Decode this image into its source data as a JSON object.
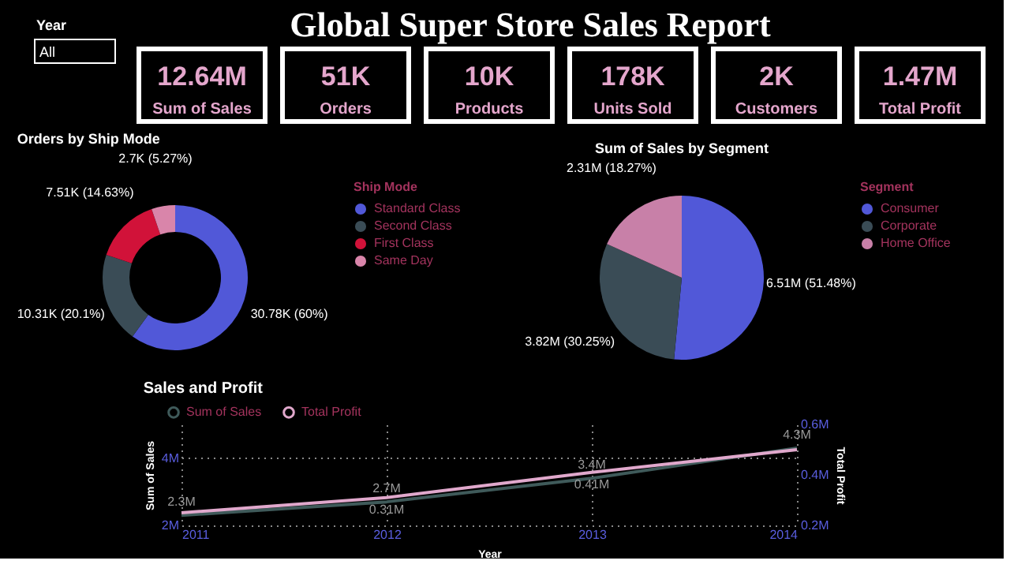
{
  "chart_data": [
    {
      "type": "other",
      "title": "Global Super Store Sales Report",
      "annotations": [
        "Year",
        "All",
        "12.64M",
        "Sum of Sales",
        "51K",
        "Orders",
        "10K",
        "Products",
        "178K",
        "Units Sold",
        "2K",
        "Customers",
        "1.47M",
        "Total Profit"
      ]
    },
    {
      "type": "donut",
      "title": "Orders by Ship Mode",
      "legend_title": "Ship Mode",
      "legend": "right",
      "categories": [
        "Standard Class",
        "Second Class",
        "First Class",
        "Same Day"
      ],
      "values": [
        30780,
        10310,
        7510,
        2700
      ],
      "colors": [
        "#5158d8",
        "#3a4c56",
        "#d11239",
        "#d985aa"
      ],
      "value_labels": [
        "30.78K (60%)",
        "10.31K (20.1%)",
        "7.51K (14.63%)",
        "2.7K (5.27%)"
      ]
    },
    {
      "type": "pie",
      "title": "Sum of Sales by Segment",
      "legend_title": "Segment",
      "legend": "right",
      "categories": [
        "Consumer",
        "Corporate",
        "Home Office"
      ],
      "values": [
        6510000,
        3820000,
        2310000
      ],
      "colors": [
        "#5158d8",
        "#3a4c56",
        "#c880a8"
      ],
      "value_labels": [
        "6.51M (51.48%)",
        "3.82M (30.25%)",
        "2.31M (18.27%)"
      ]
    },
    {
      "type": "line",
      "title": "Sales and Profit",
      "xlabel": "Year",
      "ylabel": "Sum of Sales",
      "y2label": "Total Profit",
      "legend": "top left",
      "grid": true,
      "marker": "none",
      "line_style": "solid",
      "x": [
        2011,
        2012,
        2013,
        2014
      ],
      "xlim": [
        2011,
        2014
      ],
      "xticks": [
        2011,
        2012,
        2013,
        2014
      ],
      "ylim": [
        2,
        5
      ],
      "yticks": [
        {
          "value": 2,
          "label": "2M"
        },
        {
          "value": 4,
          "label": "4M"
        }
      ],
      "y2lim": [
        0.2,
        0.6
      ],
      "y2ticks": [
        {
          "value": 0.2,
          "label": "0.2M"
        },
        {
          "value": 0.4,
          "label": "0.4M"
        },
        {
          "value": 0.6,
          "label": "0.6M"
        }
      ],
      "series": [
        {
          "name": "Sum of Sales",
          "color": "#3f5a5a",
          "values": [
            2.3,
            2.7,
            3.4,
            4.3
          ],
          "value_labels": [
            "2.3M",
            "2.7M",
            "3.4M",
            "4.3M"
          ]
        },
        {
          "name": "Total Profit",
          "color": "#e0a8cc",
          "axis": "y2",
          "values": [
            0.25,
            0.31,
            0.41,
            0.5
          ],
          "value_labels": [
            null,
            "0.31M",
            "0.41M",
            null
          ]
        }
      ]
    }
  ]
}
